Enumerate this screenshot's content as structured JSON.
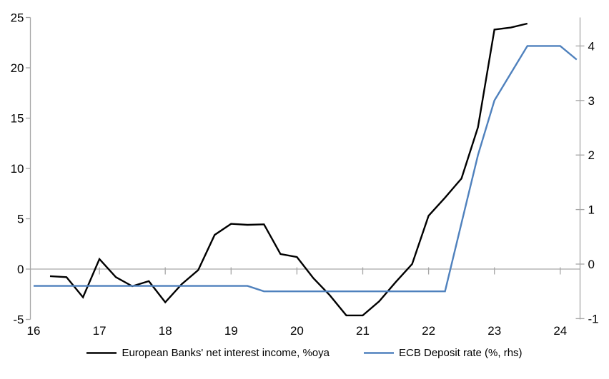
{
  "chart_data": {
    "type": "line",
    "title": "",
    "frequency": "quarterly",
    "axis_color": "#A6A6A6",
    "background_color": "#FFFFFF",
    "grid": "horizontal zero line only",
    "legend_position": "bottom",
    "x_axis": {
      "tick_labels": [
        "16",
        "17",
        "18",
        "19",
        "20",
        "21",
        "22",
        "23",
        "24"
      ],
      "tick_values": [
        16,
        17,
        18,
        19,
        20,
        21,
        22,
        23,
        24
      ],
      "zero_line_tick_years": [
        17,
        18,
        19,
        20,
        21,
        22,
        23,
        24
      ],
      "range": [
        16,
        24.3
      ]
    },
    "left_axis": {
      "tick_values": [
        -5,
        0,
        5,
        10,
        15,
        20,
        25
      ],
      "range": [
        -5,
        25.3
      ],
      "applies_to": "European Banks' net interest income, %oya"
    },
    "right_axis": {
      "tick_values": [
        -1,
        0,
        1,
        2,
        3,
        4
      ],
      "range": [
        -1.05,
        4.6
      ],
      "applies_to": "ECB Deposit rate (%, rhs)"
    },
    "series": [
      {
        "name": "European Banks' net interest income, %oya",
        "color": "#000000",
        "axis": "left",
        "x": [
          16.25,
          16.5,
          16.75,
          17.0,
          17.25,
          17.5,
          17.75,
          18.0,
          18.25,
          18.5,
          18.75,
          19.0,
          19.25,
          19.5,
          19.75,
          20.0,
          20.25,
          20.5,
          20.75,
          21.0,
          21.25,
          21.5,
          21.75,
          22.0,
          22.25,
          22.5,
          22.75,
          23.0,
          23.25,
          23.5
        ],
        "values": [
          -0.7,
          -0.8,
          -2.8,
          1.0,
          -0.8,
          -1.7,
          -1.2,
          -3.3,
          -1.5,
          -0.1,
          3.4,
          4.5,
          4.4,
          4.45,
          1.5,
          1.2,
          -0.9,
          -2.6,
          -4.6,
          -4.6,
          -3.2,
          -1.3,
          0.5,
          5.3,
          7.1,
          9.0,
          14.1,
          23.8,
          24.0,
          24.4
        ]
      },
      {
        "name": "ECB Deposit rate (%, rhs)",
        "color": "#4F81BD",
        "axis": "right",
        "x": [
          16.0,
          16.25,
          16.5,
          16.75,
          17.0,
          17.25,
          17.5,
          17.75,
          18.0,
          18.25,
          18.5,
          18.75,
          19.0,
          19.25,
          19.5,
          19.75,
          20.0,
          20.25,
          20.5,
          20.75,
          21.0,
          21.25,
          21.5,
          21.75,
          22.0,
          22.25,
          22.5,
          22.75,
          23.0,
          23.25,
          23.5,
          23.75,
          24.0,
          24.25
        ],
        "values": [
          -0.4,
          -0.4,
          -0.4,
          -0.4,
          -0.4,
          -0.4,
          -0.4,
          -0.4,
          -0.4,
          -0.4,
          -0.4,
          -0.4,
          -0.4,
          -0.4,
          -0.5,
          -0.5,
          -0.5,
          -0.5,
          -0.5,
          -0.5,
          -0.5,
          -0.5,
          -0.5,
          -0.5,
          -0.5,
          -0.5,
          0.75,
          2.0,
          3.0,
          3.5,
          4.0,
          4.0,
          4.0,
          3.75
        ]
      }
    ]
  }
}
